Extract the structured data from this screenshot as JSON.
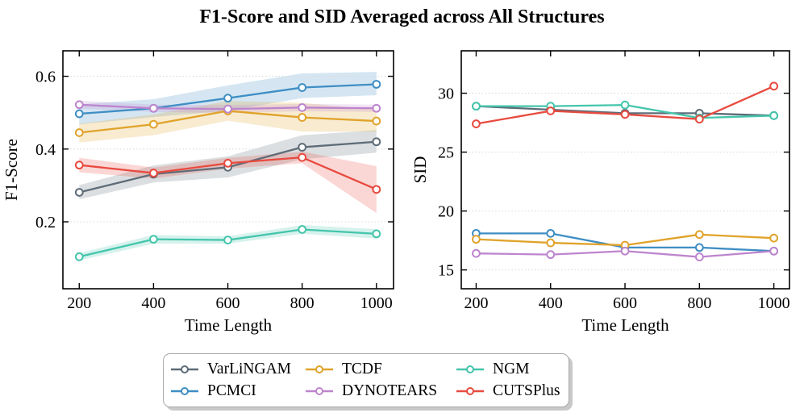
{
  "figure": {
    "title": "F1-Score and SID Averaged across All Structures",
    "background": "#ffffff"
  },
  "legend": {
    "position": "bottom-center",
    "entries": [
      {
        "label": "VarLiNGAM",
        "color": "#5e6c78"
      },
      {
        "label": "PCMCI",
        "color": "#3e8ec4"
      },
      {
        "label": "TCDF",
        "color": "#e0a32a"
      },
      {
        "label": "DYNOTEARS",
        "color": "#bd85ce"
      },
      {
        "label": "NGM",
        "color": "#44c5ab"
      },
      {
        "label": "CUTSPlus",
        "color": "#e84a3f"
      }
    ]
  },
  "chart_data": [
    {
      "type": "line",
      "title": "",
      "xlabel": "Time Length",
      "ylabel": "F1-Score",
      "x": [
        200,
        400,
        600,
        800,
        1000
      ],
      "xticks": [
        200,
        400,
        600,
        800,
        1000
      ],
      "yticks": [
        0.2,
        0.4,
        0.6
      ],
      "ytick_labels": [
        "0.2",
        "0.4",
        "0.6"
      ],
      "xlim": [
        156,
        1046
      ],
      "ylim": [
        0.016,
        0.67
      ],
      "grid": "horizontal-dotted",
      "series": [
        {
          "name": "VarLiNGAM",
          "color": "#5e6c78",
          "values": [
            0.281,
            0.331,
            0.35,
            0.405,
            0.42
          ],
          "band_lower": [
            0.262,
            0.308,
            0.322,
            0.372,
            0.39
          ],
          "band_upper": [
            0.301,
            0.355,
            0.38,
            0.438,
            0.452
          ]
        },
        {
          "name": "PCMCI",
          "color": "#3e8ec4",
          "values": [
            0.497,
            0.512,
            0.54,
            0.569,
            0.578
          ],
          "band_lower": [
            0.468,
            0.488,
            0.505,
            0.54,
            0.548
          ],
          "band_upper": [
            0.523,
            0.537,
            0.575,
            0.608,
            0.612
          ]
        },
        {
          "name": "TCDF",
          "color": "#e0a32a",
          "values": [
            0.445,
            0.468,
            0.505,
            0.487,
            0.477
          ],
          "band_lower": [
            0.418,
            0.438,
            0.478,
            0.448,
            0.448
          ],
          "band_upper": [
            0.47,
            0.495,
            0.532,
            0.527,
            0.508
          ]
        },
        {
          "name": "DYNOTEARS",
          "color": "#bd85ce",
          "values": [
            0.522,
            0.512,
            0.51,
            0.514,
            0.512
          ],
          "band_lower": [
            0.511,
            0.502,
            0.499,
            0.504,
            0.502
          ],
          "band_upper": [
            0.533,
            0.522,
            0.521,
            0.524,
            0.522
          ]
        },
        {
          "name": "NGM",
          "color": "#44c5ab",
          "values": [
            0.104,
            0.152,
            0.15,
            0.179,
            0.167
          ],
          "band_lower": [
            0.094,
            0.14,
            0.14,
            0.167,
            0.154
          ],
          "band_upper": [
            0.114,
            0.164,
            0.16,
            0.191,
            0.18
          ]
        },
        {
          "name": "CUTSPlus",
          "color": "#e84a3f",
          "values": [
            0.356,
            0.334,
            0.361,
            0.377,
            0.289
          ],
          "band_lower": [
            0.336,
            0.319,
            0.346,
            0.361,
            0.224
          ],
          "band_upper": [
            0.376,
            0.349,
            0.376,
            0.393,
            0.353
          ]
        }
      ]
    },
    {
      "type": "line",
      "title": "",
      "xlabel": "Time Length",
      "ylabel": "SID",
      "x": [
        200,
        400,
        600,
        800,
        1000
      ],
      "xticks": [
        200,
        400,
        600,
        800,
        1000
      ],
      "yticks": [
        15,
        20,
        25,
        30
      ],
      "ytick_labels": [
        "15",
        "20",
        "25",
        "30"
      ],
      "xlim": [
        160,
        1042
      ],
      "ylim": [
        13.4,
        33.6
      ],
      "grid": "horizontal-dotted",
      "series": [
        {
          "name": "VarLiNGAM",
          "color": "#5e6c78",
          "values": [
            28.9,
            28.6,
            28.3,
            28.3,
            28.1
          ]
        },
        {
          "name": "PCMCI",
          "color": "#3e8ec4",
          "values": [
            18.1,
            18.1,
            16.9,
            16.9,
            16.6
          ]
        },
        {
          "name": "TCDF",
          "color": "#e0a32a",
          "values": [
            17.6,
            17.3,
            17.1,
            18.0,
            17.7
          ]
        },
        {
          "name": "DYNOTEARS",
          "color": "#bd85ce",
          "values": [
            16.4,
            16.3,
            16.6,
            16.1,
            16.6
          ]
        },
        {
          "name": "NGM",
          "color": "#44c5ab",
          "values": [
            28.9,
            28.9,
            29.0,
            27.9,
            28.1
          ]
        },
        {
          "name": "CUTSPlus",
          "color": "#e84a3f",
          "values": [
            27.4,
            28.5,
            28.2,
            27.8,
            30.6
          ]
        }
      ]
    }
  ]
}
